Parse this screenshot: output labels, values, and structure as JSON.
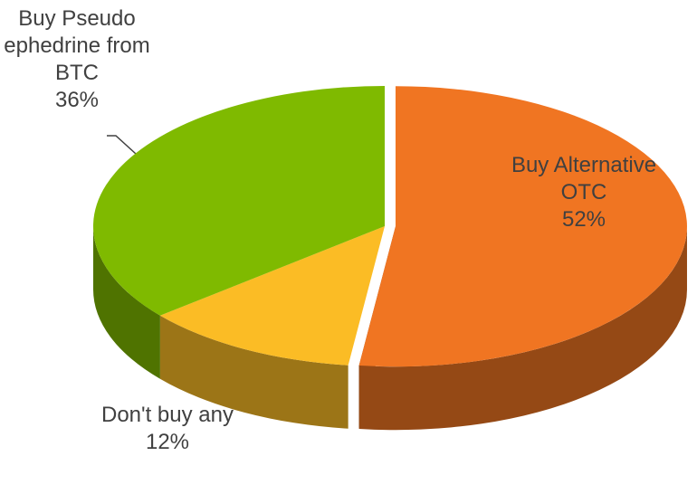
{
  "chart_data": {
    "type": "pie3d",
    "categories": [
      "Buy Alternative OTC",
      "Don't buy any",
      "Buy Pseudo ephedrine from BTC"
    ],
    "values": [
      52,
      12,
      36
    ],
    "value_labels": [
      "52%",
      "12%",
      "36%"
    ],
    "colors": [
      "#f07522",
      "#fbbc25",
      "#7fba00"
    ],
    "exploded": [
      true,
      false,
      false
    ]
  }
}
